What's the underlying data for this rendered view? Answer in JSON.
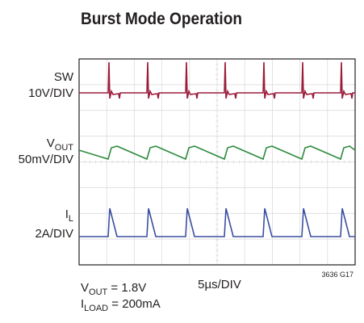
{
  "title": "Burst Mode Operation",
  "channels": [
    {
      "name": "SW",
      "scale": "10V/DIV"
    },
    {
      "name": "V",
      "name_sub": "OUT",
      "scale": "50mV/DIV"
    },
    {
      "name": "I",
      "name_sub": "L",
      "scale": "2A/DIV"
    }
  ],
  "time_scale": "5µs/DIV",
  "figure_id": "3636 G17",
  "conditions": [
    {
      "name": "V",
      "sub": "OUT",
      "text": " = 1.8V"
    },
    {
      "name": "I",
      "sub": "LOAD",
      "text": " = 200mA"
    }
  ]
}
